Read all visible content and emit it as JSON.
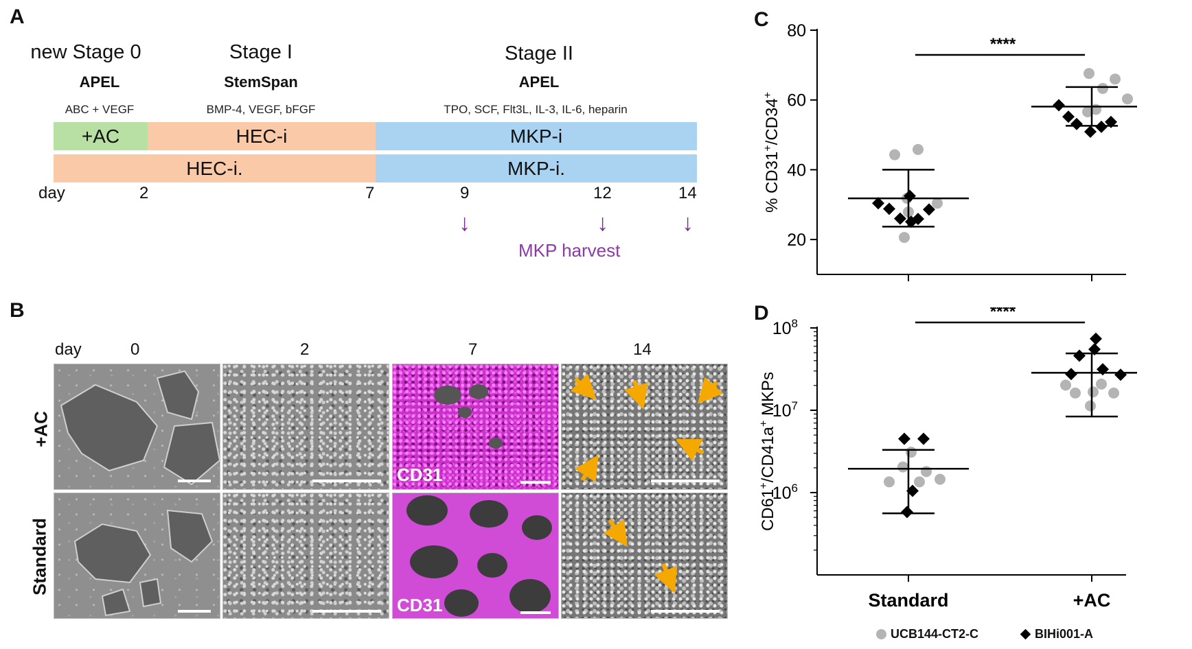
{
  "panelA": {
    "letter": "A",
    "stages": [
      {
        "title": "new Stage 0",
        "medium": "APEL",
        "factors": "ABC + VEGF"
      },
      {
        "title": "Stage I",
        "medium": "StemSpan",
        "factors": "BMP-4, VEGF, bFGF"
      },
      {
        "title": "Stage II",
        "medium": "APEL",
        "factors": "TPO, SCF, Flt3L, IL-3, IL-6, heparin"
      }
    ],
    "row1": {
      "ac": "+AC",
      "hec": "HEC-i",
      "mkp": "MKP-i"
    },
    "row2": {
      "hec": "HEC-i.",
      "mkp": "MKP-i."
    },
    "day_label": "day",
    "days": [
      "2",
      "7",
      "9",
      "12",
      "14"
    ],
    "harvest_label": "MKP harvest",
    "colors": {
      "ac": "#b9e0a4",
      "hec": "#f9c9a8",
      "mkp": "#a9d3f0",
      "harvest": "#7b2a94"
    }
  },
  "panelB": {
    "letter": "B",
    "day_label": "day",
    "columns": [
      "0",
      "2",
      "7",
      "14"
    ],
    "rows": [
      "+AC",
      "Standard"
    ],
    "stain_label": "CD31"
  },
  "panelC": {
    "letter": "C"
  },
  "panelD": {
    "letter": "D"
  },
  "legend": {
    "series": [
      {
        "name": "UCB144-CT2-C",
        "color": "#b4b4b4",
        "marker": "circle"
      },
      {
        "name": "BIHi001-A",
        "color": "#000000",
        "marker": "diamond"
      }
    ]
  },
  "chart_data": [
    {
      "id": "C",
      "type": "scatter",
      "title": "",
      "ylabel": "% CD31+/CD34+",
      "ylim": [
        10,
        80
      ],
      "yticks": [
        "20",
        "40",
        "60",
        "80"
      ],
      "categories": [
        "Standard",
        "+AC"
      ],
      "significance": "****",
      "summary": [
        {
          "category": "Standard",
          "mean": 31.8,
          "upper": 40.0,
          "lower": 23.7
        },
        {
          "category": "+AC",
          "mean": 58.1,
          "upper": 63.7,
          "lower": 52.6
        }
      ],
      "series": [
        {
          "name": "UCB144-CT2-C",
          "points": [
            {
              "cat": 0,
              "dx": -0.5,
              "y": 44.3
            },
            {
              "cat": 0,
              "dx": 0.35,
              "y": 45.8
            },
            {
              "cat": 0,
              "dx": -0.05,
              "y": 31.8
            },
            {
              "cat": 0,
              "dx": 1.05,
              "y": 30.4
            },
            {
              "cat": 0,
              "dx": 0.0,
              "y": 27.9
            },
            {
              "cat": 0,
              "dx": -0.15,
              "y": 20.6
            },
            {
              "cat": 1,
              "dx": -0.1,
              "y": 67.6
            },
            {
              "cat": 1,
              "dx": 0.85,
              "y": 66.0
            },
            {
              "cat": 1,
              "dx": 0.4,
              "y": 63.3
            },
            {
              "cat": 1,
              "dx": 1.3,
              "y": 60.3
            },
            {
              "cat": 1,
              "dx": -0.15,
              "y": 56.6
            },
            {
              "cat": 1,
              "dx": 0.15,
              "y": 57.3
            }
          ]
        },
        {
          "name": "BIHi001-A",
          "points": [
            {
              "cat": 0,
              "dx": -1.1,
              "y": 30.4
            },
            {
              "cat": 0,
              "dx": -0.7,
              "y": 28.8
            },
            {
              "cat": 0,
              "dx": -0.3,
              "y": 26.0
            },
            {
              "cat": 0,
              "dx": 0.1,
              "y": 25.1
            },
            {
              "cat": 0,
              "dx": 0.35,
              "y": 25.9
            },
            {
              "cat": 0,
              "dx": 0.75,
              "y": 28.6
            },
            {
              "cat": 0,
              "dx": 0.05,
              "y": 32.5
            },
            {
              "cat": 1,
              "dx": -1.2,
              "y": 58.5
            },
            {
              "cat": 1,
              "dx": -0.85,
              "y": 55.2
            },
            {
              "cat": 1,
              "dx": -0.55,
              "y": 53.1
            },
            {
              "cat": 1,
              "dx": -0.05,
              "y": 50.9
            },
            {
              "cat": 1,
              "dx": 0.35,
              "y": 52.3
            },
            {
              "cat": 1,
              "dx": 0.7,
              "y": 53.7
            }
          ]
        }
      ]
    },
    {
      "id": "D",
      "type": "scatter",
      "title": "",
      "ylabel": "CD61+/CD41a+ MKPs",
      "yscale": "log",
      "ylim": [
        100000,
        100000000
      ],
      "yticks": [
        "10^6",
        "10^7",
        "10^8"
      ],
      "categories": [
        "Standard",
        "+AC"
      ],
      "significance": "****",
      "summary": [
        {
          "category": "Standard",
          "mean": 1950000,
          "upper": 3300000,
          "lower": 560000
        },
        {
          "category": "+AC",
          "mean": 28500000,
          "upper": 49000000,
          "lower": 8400000
        }
      ],
      "series": [
        {
          "name": "UCB144-CT2-C",
          "points": [
            {
              "cat": 0,
              "dx": 0.1,
              "y": 3100000
            },
            {
              "cat": 0,
              "dx": -0.2,
              "y": 2050000
            },
            {
              "cat": 0,
              "dx": 0.65,
              "y": 1800000
            },
            {
              "cat": 0,
              "dx": -0.7,
              "y": 1350000
            },
            {
              "cat": 0,
              "dx": 0.4,
              "y": 1350000
            },
            {
              "cat": 0,
              "dx": 1.15,
              "y": 1450000
            },
            {
              "cat": 1,
              "dx": -0.95,
              "y": 20200000
            },
            {
              "cat": 1,
              "dx": -0.6,
              "y": 16200000
            },
            {
              "cat": 1,
              "dx": 0.05,
              "y": 16700000
            },
            {
              "cat": 1,
              "dx": 0.35,
              "y": 20800000
            },
            {
              "cat": 1,
              "dx": 0.8,
              "y": 16200000
            },
            {
              "cat": 1,
              "dx": -0.05,
              "y": 11300000
            }
          ]
        },
        {
          "name": "BIHi001-A",
          "points": [
            {
              "cat": 0,
              "dx": -0.15,
              "y": 4500000
            },
            {
              "cat": 0,
              "dx": 0.55,
              "y": 4500000
            },
            {
              "cat": 0,
              "dx": 0.15,
              "y": 1050000
            },
            {
              "cat": 0,
              "dx": -0.05,
              "y": 580000
            },
            {
              "cat": 1,
              "dx": 0.15,
              "y": 74000000
            },
            {
              "cat": 1,
              "dx": -0.45,
              "y": 46000000
            },
            {
              "cat": 1,
              "dx": 0.1,
              "y": 55000000
            },
            {
              "cat": 1,
              "dx": -0.75,
              "y": 27500000
            },
            {
              "cat": 1,
              "dx": 0.4,
              "y": 31500000
            },
            {
              "cat": 1,
              "dx": 1.05,
              "y": 27000000
            }
          ]
        }
      ]
    }
  ]
}
